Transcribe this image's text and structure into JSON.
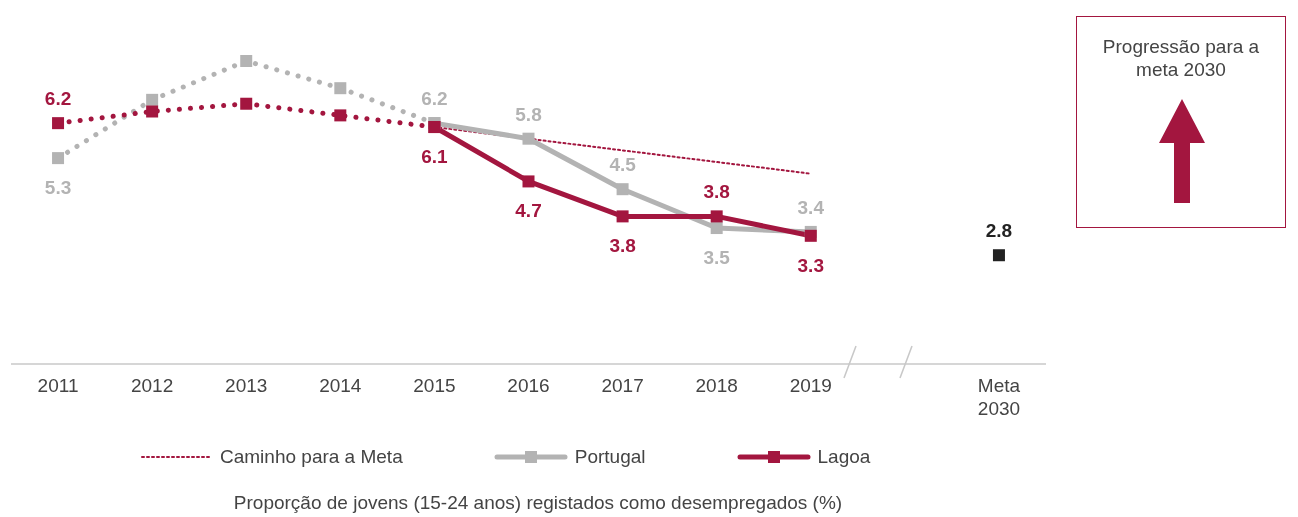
{
  "chart_data": {
    "type": "line",
    "categories": [
      "2011",
      "2012",
      "2013",
      "2014",
      "2015",
      "2016",
      "2017",
      "2018",
      "2019",
      null,
      "Meta 2030"
    ],
    "legend": "bottom",
    "tick_labels": "x",
    "marker": "square",
    "series": [
      {
        "name": "Caminho para a Meta",
        "color": "#a3163f",
        "line_style": "dotted",
        "marker": "none",
        "values": [
          null,
          null,
          null,
          null,
          6.1,
          5.8,
          5.5,
          5.2,
          4.9,
          null,
          null
        ]
      },
      {
        "color": "#b3b3b3",
        "line_style": "dotted",
        "values": [
          5.3,
          6.8,
          7.8,
          7.1,
          6.2,
          null,
          null,
          null,
          null,
          null,
          null
        ],
        "value_labels": [
          "5.3",
          null,
          null,
          null,
          null,
          null,
          null,
          null,
          null,
          null,
          null
        ]
      },
      {
        "name": "Portugal",
        "color": "#b3b3b3",
        "line_style": "solid",
        "values": [
          null,
          null,
          null,
          null,
          6.2,
          5.8,
          4.5,
          3.5,
          3.4,
          null,
          null
        ],
        "value_labels": [
          null,
          null,
          null,
          null,
          "6.2",
          "5.8",
          "4.5",
          "3.5",
          "3.4",
          null,
          null
        ]
      },
      {
        "color": "#a3163f",
        "line_style": "dotted",
        "values": [
          6.2,
          6.5,
          6.7,
          6.4,
          6.1,
          null,
          null,
          null,
          null,
          null,
          null
        ],
        "value_labels": [
          "6.2",
          null,
          null,
          null,
          null,
          null,
          null,
          null,
          null,
          null,
          null
        ]
      },
      {
        "name": "Lagoa",
        "color": "#a3163f",
        "line_style": "solid",
        "values": [
          null,
          null,
          null,
          null,
          6.1,
          4.7,
          3.8,
          3.8,
          3.3,
          null,
          null
        ],
        "value_labels": [
          null,
          null,
          null,
          null,
          "6.1",
          "4.7",
          "3.8",
          "3.8",
          "3.3",
          null,
          null
        ]
      },
      {
        "type": "scatter",
        "color": "#222222",
        "values": [
          null,
          null,
          null,
          null,
          null,
          null,
          null,
          null,
          null,
          null,
          2.8
        ],
        "value_labels": [
          null,
          null,
          null,
          null,
          null,
          null,
          null,
          null,
          null,
          null,
          "2.8"
        ]
      }
    ],
    "annotations": [
      "Proporção de jovens (15-24 anos) registados como desempregados (%)",
      "Progressão para a meta 2030"
    ]
  }
}
